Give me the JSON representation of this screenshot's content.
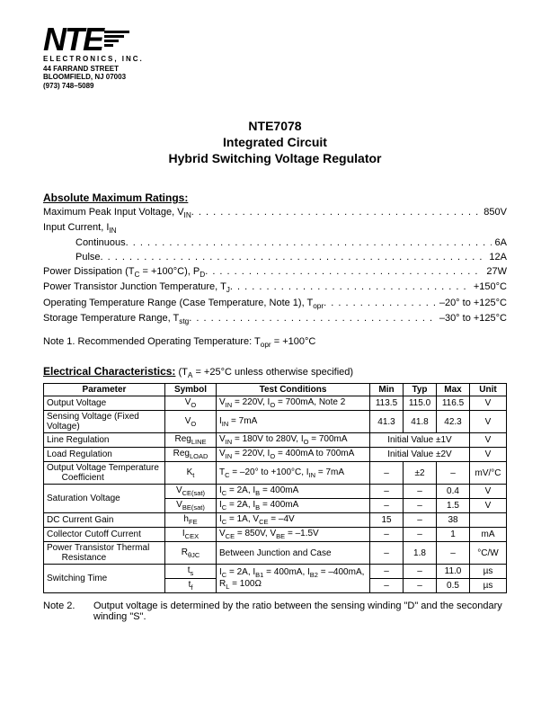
{
  "logo": {
    "company": "NTE",
    "sub": "ELECTRONICS, INC.",
    "addr1": "44 FARRAND STREET",
    "addr2": "BLOOMFIELD, NJ 07003",
    "phone": "(973) 748–5089"
  },
  "title": {
    "l1": "NTE7078",
    "l2": "Integrated Circuit",
    "l3": "Hybrid Switching Voltage Regulator"
  },
  "ratings_head": "Absolute Maximum Ratings:",
  "ratings": [
    {
      "label": "Maximum Peak Input Voltage, V",
      "sub": "IN",
      "val": "850V",
      "indent": false
    },
    {
      "label": "Input Current, I",
      "sub": "IN",
      "val": "",
      "indent": false,
      "nodots": true
    },
    {
      "label": "Continuous",
      "sub": "",
      "val": "6A",
      "indent": true
    },
    {
      "label": "Pulse",
      "sub": "",
      "val": "12A",
      "indent": true
    },
    {
      "label": "Power Dissipation (T",
      "sub": "C",
      "after": " = +100°C), P",
      "sub2": "D",
      "val": "27W",
      "indent": false
    },
    {
      "label": "Power Transistor Junction Temperature, T",
      "sub": "J",
      "val": "+150°C",
      "indent": false
    },
    {
      "label": "Operating Temperature Range (Case Temperature, Note 1), T",
      "sub": "opr",
      "val": "–20° to +125°C",
      "indent": false
    },
    {
      "label": "Storage Temperature Range, T",
      "sub": "stg",
      "val": "–30° to +125°C",
      "indent": false
    }
  ],
  "note1": "Note  1. Recommended Operating Temperature:  T",
  "note1_sub": "opr",
  "note1_after": " = +100°C",
  "elec_head": "Electrical Characteristics:",
  "elec_cond": "  (T",
  "elec_cond_sub": "A",
  "elec_cond_after": " = +25°C unless otherwise specified)",
  "headers": [
    "Parameter",
    "Symbol",
    "Test Conditions",
    "Min",
    "Typ",
    "Max",
    "Unit"
  ],
  "rows": [
    {
      "p": "Output Voltage",
      "s": "V<sub>O</sub>",
      "c": "V<sub>IN</sub> = 220V, I<sub>O</sub> = 700mA, Note 2",
      "min": "113.5",
      "typ": "115.0",
      "max": "116.5",
      "u": "V"
    },
    {
      "p": "Sensing Voltage (Fixed Voltage)",
      "s": "V<sub>O</sub>",
      "c": "I<sub>IN</sub> = 7mA",
      "min": "41.3",
      "typ": "41.8",
      "max": "42.3",
      "u": "V"
    },
    {
      "p": "Line Regulation",
      "s": "Reg<sub>LINE</sub>",
      "c": "V<sub>IN</sub> = 180V to 280V, I<sub>O</sub> = 700mA",
      "span": "Initial Value ±1V",
      "u": "V"
    },
    {
      "p": "Load Regulation",
      "s": "Reg<sub>LOAD</sub>",
      "c": "V<sub>IN</sub> = 220V, I<sub>O</sub> = 400mA to 700mA",
      "span": "Initial Value ±2V",
      "u": "V"
    },
    {
      "p": "Output Voltage Temperature<br>&nbsp;&nbsp;&nbsp;&nbsp;&nbsp;&nbsp;Coefficient",
      "s": "K<sub>t</sub>",
      "c": "T<sub>C</sub> = –20° to +100°C, I<sub>IN</sub> = 7mA",
      "min": "–",
      "typ": "±2",
      "max": "–",
      "u": "mV/°C"
    },
    {
      "p": "Saturation Voltage",
      "rowspan": 2,
      "s": "V<sub>CE(sat)</sub>",
      "c": "I<sub>C</sub> = 2A, I<sub>B</sub> = 400mA",
      "min": "–",
      "typ": "–",
      "max": "0.4",
      "u": "V"
    },
    {
      "s": "V<sub>BE(sat)</sub>",
      "c": "I<sub>C</sub> = 2A, I<sub>B</sub> = 400mA",
      "min": "–",
      "typ": "–",
      "max": "1.5",
      "u": "V"
    },
    {
      "p": "DC Current Gain",
      "s": "h<sub>FE</sub>",
      "c": "I<sub>C</sub> = 1A, V<sub>CE</sub> = –4V",
      "min": "15",
      "typ": "–",
      "max": "38",
      "u": ""
    },
    {
      "p": "Collector Cutoff Current",
      "s": "I<sub>CEX</sub>",
      "c": "V<sub>CE</sub> = 850V, V<sub>BE</sub> = –1.5V",
      "min": "–",
      "typ": "–",
      "max": "1",
      "u": "mA"
    },
    {
      "p": "Power Transistor Thermal<br>&nbsp;&nbsp;&nbsp;&nbsp;&nbsp;&nbsp;Resistance",
      "s": "R<sub>θJC</sub>",
      "c": "Between Junction and Case",
      "min": "–",
      "typ": "1.8",
      "max": "–",
      "u": "°C/W"
    },
    {
      "p": "Switching Time",
      "rowspan": 2,
      "s": "t<sub>s</sub>",
      "c": "I<sub>C</sub> = 2A, I<sub>B1</sub> = 400mA, I<sub>B2</sub> = –400mA,<br>R<sub>L</sub> = 100Ω",
      "crow": 2,
      "min": "–",
      "typ": "–",
      "max": "11.0",
      "u": "µs"
    },
    {
      "s": "t<sub>f</sub>",
      "min": "–",
      "typ": "–",
      "max": "0.5",
      "u": "µs"
    }
  ],
  "note2_lbl": "Note  2.",
  "note2_txt": "Output voltage is determined by the ratio between the sensing winding \"D\" and the secondary winding \"S\"."
}
